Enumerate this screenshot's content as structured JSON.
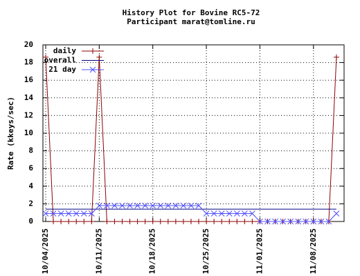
{
  "chart_data": {
    "type": "line",
    "title": "History Plot for Bovine RC5-72",
    "subtitle": "Participant marat@tomline.ru",
    "ylabel": "Rate (kkeys/sec)",
    "x": [
      "10/04/2025",
      "10/05/2025",
      "10/06/2025",
      "10/07/2025",
      "10/08/2025",
      "10/09/2025",
      "10/10/2025",
      "10/11/2025",
      "10/12/2025",
      "10/13/2025",
      "10/14/2025",
      "10/15/2025",
      "10/16/2025",
      "10/17/2025",
      "10/18/2025",
      "10/19/2025",
      "10/20/2025",
      "10/21/2025",
      "10/22/2025",
      "10/23/2025",
      "10/24/2025",
      "10/25/2025",
      "10/26/2025",
      "10/27/2025",
      "10/28/2025",
      "10/29/2025",
      "10/30/2025",
      "10/31/2025",
      "11/01/2025",
      "11/02/2025",
      "11/03/2025",
      "11/04/2025",
      "11/05/2025",
      "11/06/2025",
      "11/07/2025",
      "11/08/2025",
      "11/09/2025",
      "11/10/2025",
      "11/11/2025"
    ],
    "series": [
      {
        "name": "daily",
        "color": "#8b0000",
        "marker": "plus",
        "values": [
          18.6,
          0,
          0,
          0,
          0,
          0,
          0,
          18.6,
          0,
          0,
          0,
          0,
          0,
          0,
          0,
          0,
          0,
          0,
          0,
          0,
          0,
          0,
          0,
          0,
          0,
          0,
          0,
          0,
          0,
          0,
          0,
          0,
          0,
          0,
          0,
          0,
          0,
          0,
          18.6
        ]
      },
      {
        "name": "overall",
        "color": "#000080",
        "marker": "none",
        "values": [
          1.4,
          1.4,
          1.4,
          1.4,
          1.4,
          1.4,
          1.4,
          1.4,
          1.4,
          1.4,
          1.4,
          1.4,
          1.4,
          1.4,
          1.4,
          1.4,
          1.4,
          1.4,
          1.4,
          1.4,
          1.4,
          1.4,
          1.4,
          1.4,
          1.4,
          1.4,
          1.4,
          1.4,
          1.4,
          1.4,
          1.4,
          1.4,
          1.4,
          1.4,
          1.4,
          1.4,
          1.4,
          1.4,
          1.4
        ]
      },
      {
        "name": "21 day",
        "color": "#5050ff",
        "marker": "cross",
        "values": [
          0.9,
          0.9,
          0.9,
          0.9,
          0.9,
          0.9,
          0.9,
          1.8,
          1.8,
          1.8,
          1.8,
          1.8,
          1.8,
          1.8,
          1.8,
          1.8,
          1.8,
          1.8,
          1.8,
          1.8,
          1.8,
          0.9,
          0.9,
          0.9,
          0.9,
          0.9,
          0.9,
          0.9,
          0,
          0,
          0,
          0,
          0,
          0,
          0,
          0,
          0,
          0,
          0.9
        ]
      }
    ],
    "xlim": [
      "10/04/2025",
      "11/12/2025"
    ],
    "xticks": [
      "10/04/2025",
      "10/11/2025",
      "10/18/2025",
      "10/25/2025",
      "11/01/2025",
      "11/08/2025"
    ],
    "ylim": [
      0,
      20
    ],
    "yticks": [
      0,
      2,
      4,
      6,
      8,
      10,
      12,
      14,
      16,
      18,
      20
    ],
    "grid": true,
    "legend": "top-left"
  }
}
